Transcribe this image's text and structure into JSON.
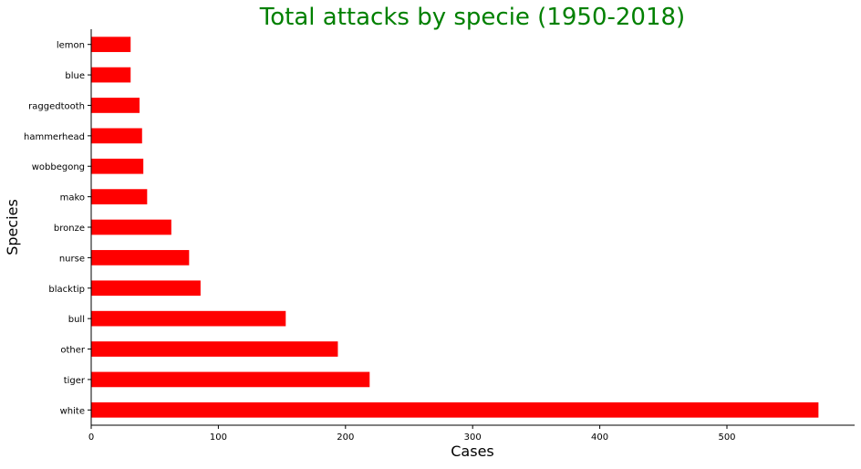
{
  "chart_data": {
    "type": "bar",
    "orientation": "horizontal",
    "title": "Total attacks by specie (1950-2018)",
    "xlabel": "Cases",
    "ylabel": "Species",
    "categories": [
      "white",
      "tiger",
      "other",
      "bull",
      "blacktip",
      "nurse",
      "bronze",
      "mako",
      "wobbegong",
      "hammerhead",
      "raggedtooth",
      "blue",
      "lemon"
    ],
    "values": [
      572,
      219,
      194,
      153,
      86,
      77,
      63,
      44,
      41,
      40,
      38,
      31,
      31
    ],
    "xlim": [
      0,
      600
    ],
    "xticks": [
      0,
      100,
      200,
      300,
      400,
      500
    ],
    "grid": false,
    "legend": "none",
    "bar_color": "#ff0000",
    "title_color": "#008000"
  }
}
